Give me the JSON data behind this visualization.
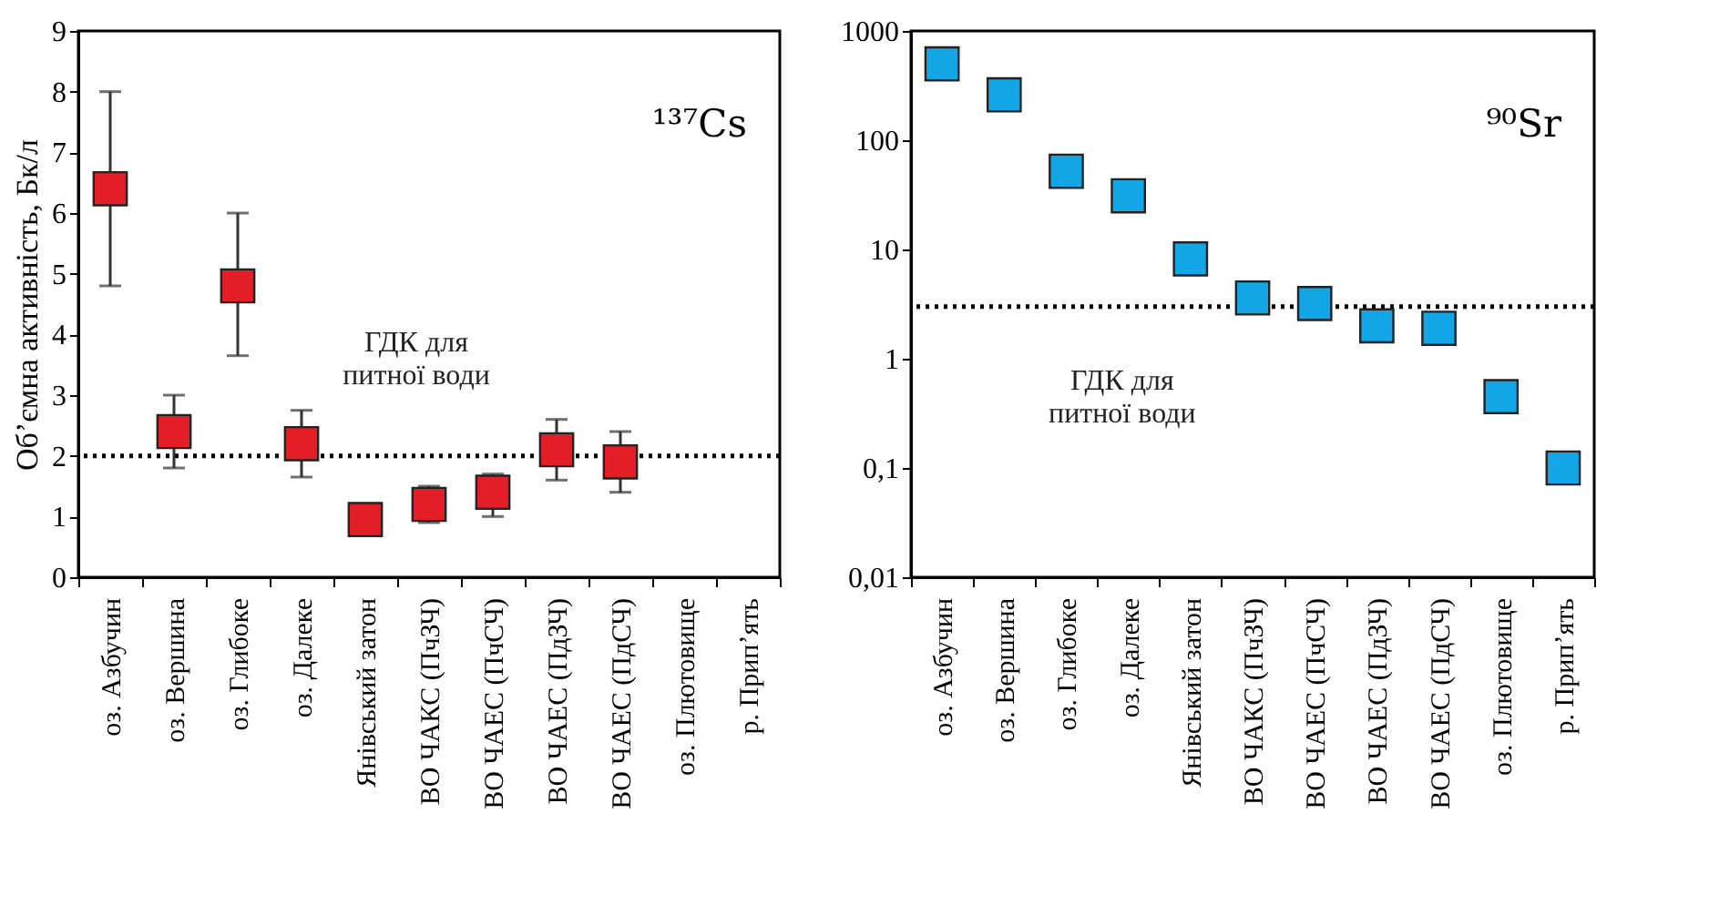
{
  "chart_data": [
    {
      "type": "scatter",
      "title": "¹³⁷Cs",
      "ylabel": "Обʼємна активність, Бк/л",
      "categories": [
        "оз. Азбучин",
        "оз. Вершина",
        "оз. Глибоке",
        "оз. Далеке",
        "Янівський затон",
        "ВО ЧАКС (ПчЗЧ)",
        "ВО ЧАЕС (ПчСЧ)",
        "ВО ЧАЕС (ПдЗЧ)",
        "ВО ЧАЕС (ПдСЧ)",
        "оз. Плютовище",
        "р. Прип’ять"
      ],
      "series": [
        {
          "color": "#e41e26",
          "values": [
            6.4,
            2.4,
            4.8,
            2.2,
            0.95,
            1.2,
            1.4,
            2.1,
            1.9,
            null,
            null
          ],
          "errors": [
            [
              4.8,
              8
            ],
            [
              1.8,
              3
            ],
            [
              3.65,
              6
            ],
            [
              1.65,
              2.75
            ],
            null,
            [
              0.9,
              1.5
            ],
            [
              1.0,
              1.7
            ],
            [
              1.6,
              2.6
            ],
            [
              1.4,
              2.4
            ],
            null,
            null
          ]
        }
      ],
      "ylim": [
        0,
        9
      ],
      "yticks": [
        0,
        1,
        2,
        3,
        4,
        5,
        6,
        7,
        8,
        9
      ],
      "grid": false,
      "marker": "square",
      "ref_lines": [
        {
          "axis": "y",
          "value": 2,
          "label": "ГДК для\nпитної води",
          "line_style": "dotted",
          "color": "#000000"
        }
      ]
    },
    {
      "type": "scatter",
      "title": "⁹⁰Sr",
      "categories": [
        "оз. Азбучин",
        "оз. Вершина",
        "оз. Глибоке",
        "оз. Далеке",
        "Янівський затон",
        "ВО ЧАКС (ПчЗЧ)",
        "ВО ЧАЕС (ПчСЧ)",
        "ВО ЧАЕС (ПдЗЧ)",
        "ВО ЧАЕС (ПдСЧ)",
        "оз. Плютовище",
        "р. Прип’ять"
      ],
      "series": [
        {
          "color": "#12a6e6",
          "values": [
            500,
            260,
            52,
            31,
            8.2,
            3.6,
            3.2,
            2.0,
            1.9,
            0.45,
            0.1
          ]
        }
      ],
      "log": true,
      "ylim": [
        0.01,
        1000
      ],
      "yticks": [
        {
          "value": 0.01,
          "label": "0,01"
        },
        {
          "value": 0.1,
          "label": "0,1"
        },
        1,
        10,
        100,
        1000
      ],
      "grid": false,
      "marker": "square",
      "ref_lines": [
        {
          "axis": "y",
          "value": 3,
          "label": "ГДК для\nпитної води",
          "line_style": "dotted",
          "color": "#000000"
        }
      ]
    }
  ]
}
